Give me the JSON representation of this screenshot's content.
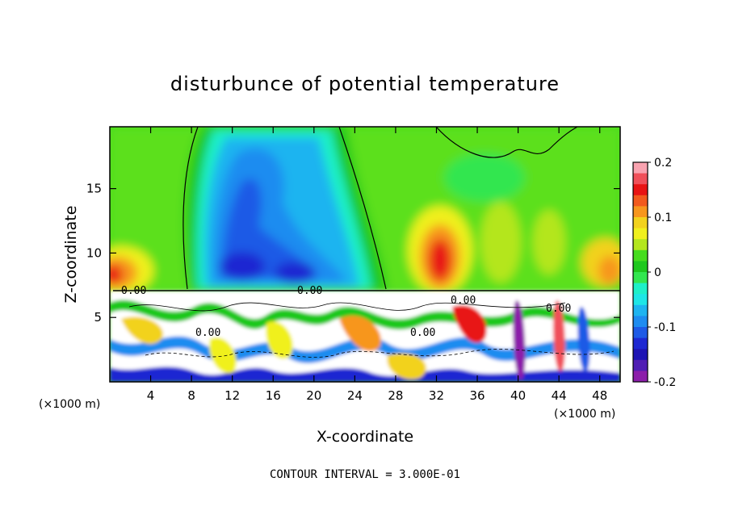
{
  "chart_data": {
    "type": "heatmap",
    "title": "disturbunce of potential temperature",
    "xlabel": "X-coordinate",
    "ylabel": "Z-coordinate",
    "x_unit_left": "(×1000 m)",
    "x_unit_right": "(×1000 m)",
    "xlim": [
      0,
      50
    ],
    "ylim": [
      0,
      19.8
    ],
    "x_ticks": [
      4,
      8,
      12,
      16,
      20,
      24,
      28,
      32,
      36,
      40,
      44,
      48
    ],
    "y_ticks": [
      5,
      10,
      15
    ],
    "colorbar": {
      "range": [
        -0.2,
        0.2
      ],
      "ticks": [
        "0.2",
        "0.1",
        "0",
        "-0.1",
        "-0.2"
      ],
      "tick_values": [
        0.2,
        0.1,
        0,
        -0.1,
        -0.2
      ],
      "colors": [
        "#F9A3B0",
        "#F0505A",
        "#E81414",
        "#F25A1E",
        "#F7961E",
        "#F2D21E",
        "#F0F01E",
        "#B4E61E",
        "#46DC1E",
        "#1EC81E",
        "#32E650",
        "#1EF0C8",
        "#1EE6E6",
        "#1EB4F0",
        "#1E8CF0",
        "#1E5AE6",
        "#1E28D2",
        "#1E14B4",
        "#501EB4",
        "#8C1EAA"
      ]
    },
    "contour_labels": [
      "0.00",
      "0.00",
      "0.00",
      "0.00",
      "0.00",
      "0.00"
    ],
    "footer": "CONTOUR INTERVAL = 3.000E-01"
  }
}
